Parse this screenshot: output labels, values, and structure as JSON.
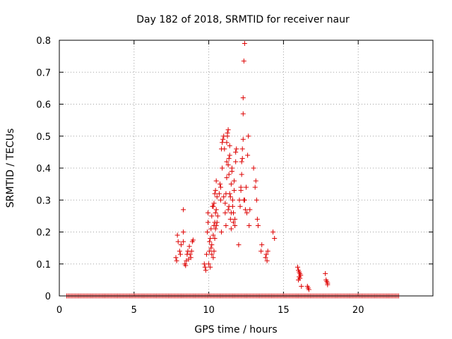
{
  "chart_data": {
    "type": "scatter",
    "title": "Day 182 of 2018, SRMTID for receiver naur",
    "xlabel": "GPS time / hours",
    "ylabel": "SRMTID / TECUs",
    "xlim": [
      0,
      25
    ],
    "ylim": [
      0,
      0.8
    ],
    "xticks": [
      "0",
      "5",
      "10",
      "15",
      "20"
    ],
    "yticks": [
      "0",
      "0.1",
      "0.2",
      "0.3",
      "0.4",
      "0.5",
      "0.6",
      "0.7",
      "0.8"
    ],
    "grid": true,
    "marker": "+",
    "color": "#dd0000",
    "series": [
      {
        "name": "SRMTID",
        "points": [
          [
            7.8,
            0.12
          ],
          [
            7.85,
            0.11
          ],
          [
            7.9,
            0.19
          ],
          [
            7.95,
            0.17
          ],
          [
            8.05,
            0.14
          ],
          [
            8.1,
            0.13
          ],
          [
            8.15,
            0.16
          ],
          [
            8.3,
            0.17
          ],
          [
            8.3,
            0.2
          ],
          [
            8.3,
            0.27
          ],
          [
            8.4,
            0.1
          ],
          [
            8.45,
            0.095
          ],
          [
            8.5,
            0.11
          ],
          [
            8.55,
            0.13
          ],
          [
            8.6,
            0.14
          ],
          [
            8.65,
            0.115
          ],
          [
            8.7,
            0.155
          ],
          [
            8.75,
            0.13
          ],
          [
            8.8,
            0.12
          ],
          [
            8.85,
            0.14
          ],
          [
            8.9,
            0.17
          ],
          [
            8.95,
            0.175
          ],
          [
            9.7,
            0.1
          ],
          [
            9.75,
            0.09
          ],
          [
            9.8,
            0.08
          ],
          [
            9.85,
            0.13
          ],
          [
            9.9,
            0.2
          ],
          [
            9.95,
            0.23
          ],
          [
            9.95,
            0.26
          ],
          [
            10.0,
            0.1
          ],
          [
            10.05,
            0.14
          ],
          [
            10.05,
            0.17
          ],
          [
            10.1,
            0.09
          ],
          [
            10.1,
            0.18
          ],
          [
            10.15,
            0.15
          ],
          [
            10.15,
            0.21
          ],
          [
            10.2,
            0.13
          ],
          [
            10.2,
            0.16
          ],
          [
            10.2,
            0.25
          ],
          [
            10.25,
            0.28
          ],
          [
            10.3,
            0.12
          ],
          [
            10.3,
            0.19
          ],
          [
            10.3,
            0.28
          ],
          [
            10.35,
            0.14
          ],
          [
            10.35,
            0.22
          ],
          [
            10.35,
            0.29
          ],
          [
            10.4,
            0.18
          ],
          [
            10.4,
            0.23
          ],
          [
            10.4,
            0.32
          ],
          [
            10.45,
            0.21
          ],
          [
            10.45,
            0.26
          ],
          [
            10.45,
            0.33
          ],
          [
            10.5,
            0.22
          ],
          [
            10.5,
            0.27
          ],
          [
            10.5,
            0.36
          ],
          [
            10.55,
            0.23
          ],
          [
            10.55,
            0.31
          ],
          [
            10.6,
            0.25
          ],
          [
            10.7,
            0.32
          ],
          [
            10.75,
            0.35
          ],
          [
            10.8,
            0.34
          ],
          [
            10.8,
            0.3
          ],
          [
            10.85,
            0.2
          ],
          [
            10.85,
            0.46
          ],
          [
            10.9,
            0.4
          ],
          [
            10.9,
            0.48
          ],
          [
            10.95,
            0.49
          ],
          [
            11.0,
            0.5
          ],
          [
            11.0,
            0.31
          ],
          [
            11.05,
            0.46
          ],
          [
            11.1,
            0.26
          ],
          [
            11.1,
            0.29
          ],
          [
            11.15,
            0.22
          ],
          [
            11.15,
            0.32
          ],
          [
            11.2,
            0.37
          ],
          [
            11.2,
            0.42
          ],
          [
            11.2,
            0.48
          ],
          [
            11.25,
            0.5
          ],
          [
            11.25,
            0.51
          ],
          [
            11.3,
            0.52
          ],
          [
            11.3,
            0.41
          ],
          [
            11.3,
            0.27
          ],
          [
            11.35,
            0.28
          ],
          [
            11.35,
            0.38
          ],
          [
            11.35,
            0.43
          ],
          [
            11.4,
            0.44
          ],
          [
            11.4,
            0.47
          ],
          [
            11.4,
            0.32
          ],
          [
            11.45,
            0.31
          ],
          [
            11.45,
            0.24
          ],
          [
            11.5,
            0.21
          ],
          [
            11.5,
            0.26
          ],
          [
            11.5,
            0.35
          ],
          [
            11.55,
            0.39
          ],
          [
            11.55,
            0.4
          ],
          [
            11.6,
            0.3
          ],
          [
            11.6,
            0.28
          ],
          [
            11.65,
            0.23
          ],
          [
            11.65,
            0.26
          ],
          [
            11.7,
            0.33
          ],
          [
            11.7,
            0.36
          ],
          [
            11.75,
            0.22
          ],
          [
            11.75,
            0.24
          ],
          [
            11.8,
            0.42
          ],
          [
            11.8,
            0.45
          ],
          [
            11.85,
            0.46
          ],
          [
            12.0,
            0.16
          ],
          [
            12.05,
            0.3
          ],
          [
            12.1,
            0.28
          ],
          [
            12.15,
            0.33
          ],
          [
            12.15,
            0.34
          ],
          [
            12.2,
            0.38
          ],
          [
            12.2,
            0.42
          ],
          [
            12.25,
            0.43
          ],
          [
            12.25,
            0.46
          ],
          [
            12.3,
            0.49
          ],
          [
            12.3,
            0.57
          ],
          [
            12.3,
            0.62
          ],
          [
            12.35,
            0.3
          ],
          [
            12.35,
            0.735
          ],
          [
            12.4,
            0.79
          ],
          [
            12.4,
            0.3
          ],
          [
            12.45,
            0.27
          ],
          [
            12.5,
            0.34
          ],
          [
            12.55,
            0.26
          ],
          [
            12.6,
            0.44
          ],
          [
            12.65,
            0.5
          ],
          [
            12.7,
            0.22
          ],
          [
            12.75,
            0.27
          ],
          [
            13.0,
            0.4
          ],
          [
            13.1,
            0.34
          ],
          [
            13.15,
            0.36
          ],
          [
            13.2,
            0.3
          ],
          [
            13.25,
            0.24
          ],
          [
            13.3,
            0.22
          ],
          [
            13.5,
            0.14
          ],
          [
            13.55,
            0.16
          ],
          [
            13.8,
            0.12
          ],
          [
            13.85,
            0.13
          ],
          [
            13.9,
            0.11
          ],
          [
            13.95,
            0.14
          ],
          [
            14.3,
            0.2
          ],
          [
            14.4,
            0.18
          ],
          [
            15.95,
            0.09
          ],
          [
            16.0,
            0.08
          ],
          [
            16.0,
            0.05
          ],
          [
            16.05,
            0.075
          ],
          [
            16.05,
            0.06
          ],
          [
            16.1,
            0.07
          ],
          [
            16.1,
            0.055
          ],
          [
            16.15,
            0.065
          ],
          [
            16.2,
            0.03
          ],
          [
            16.6,
            0.03
          ],
          [
            16.65,
            0.025
          ],
          [
            16.7,
            0.02
          ],
          [
            17.8,
            0.07
          ],
          [
            17.85,
            0.05
          ],
          [
            17.9,
            0.045
          ],
          [
            17.95,
            0.04
          ],
          [
            17.95,
            0.035
          ]
        ]
      }
    ],
    "zero_baseline": {
      "start": 0.5,
      "end": 22.7,
      "step": 0.1,
      "value": 0
    }
  }
}
